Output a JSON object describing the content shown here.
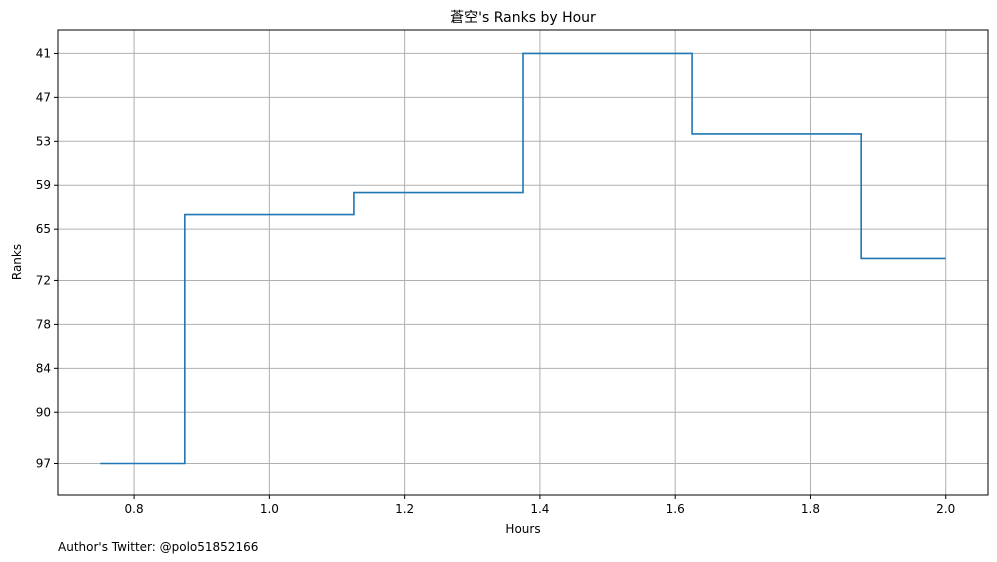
{
  "chart_data": {
    "type": "line",
    "step": "mid",
    "title": "蒼空's Ranks by Hour",
    "xlabel": "Hours",
    "ylabel": "Ranks",
    "x": [
      0.75,
      1.0,
      1.25,
      1.5,
      1.75,
      2.0
    ],
    "y": [
      97,
      63,
      60,
      41,
      52,
      69
    ],
    "xlim": [
      0.6875,
      2.0625
    ],
    "ylim": [
      101.3,
      37.8
    ],
    "y_inverted": true,
    "xticks": [
      0.8,
      1.0,
      1.2,
      1.4,
      1.6,
      1.8,
      2.0
    ],
    "xtick_labels": [
      "0.8",
      "1.0",
      "1.2",
      "1.4",
      "1.6",
      "1.8",
      "2.0"
    ],
    "yticks": [
      41,
      47,
      53,
      59,
      65,
      72,
      78,
      84,
      90,
      97
    ],
    "ytick_labels": [
      "41",
      "47",
      "53",
      "59",
      "65",
      "72",
      "78",
      "84",
      "90",
      "97"
    ],
    "grid": true,
    "line_color": "#1f77b4",
    "grid_color": "#b0b0b0"
  },
  "footer_text": "Author's Twitter: @polo51852166"
}
